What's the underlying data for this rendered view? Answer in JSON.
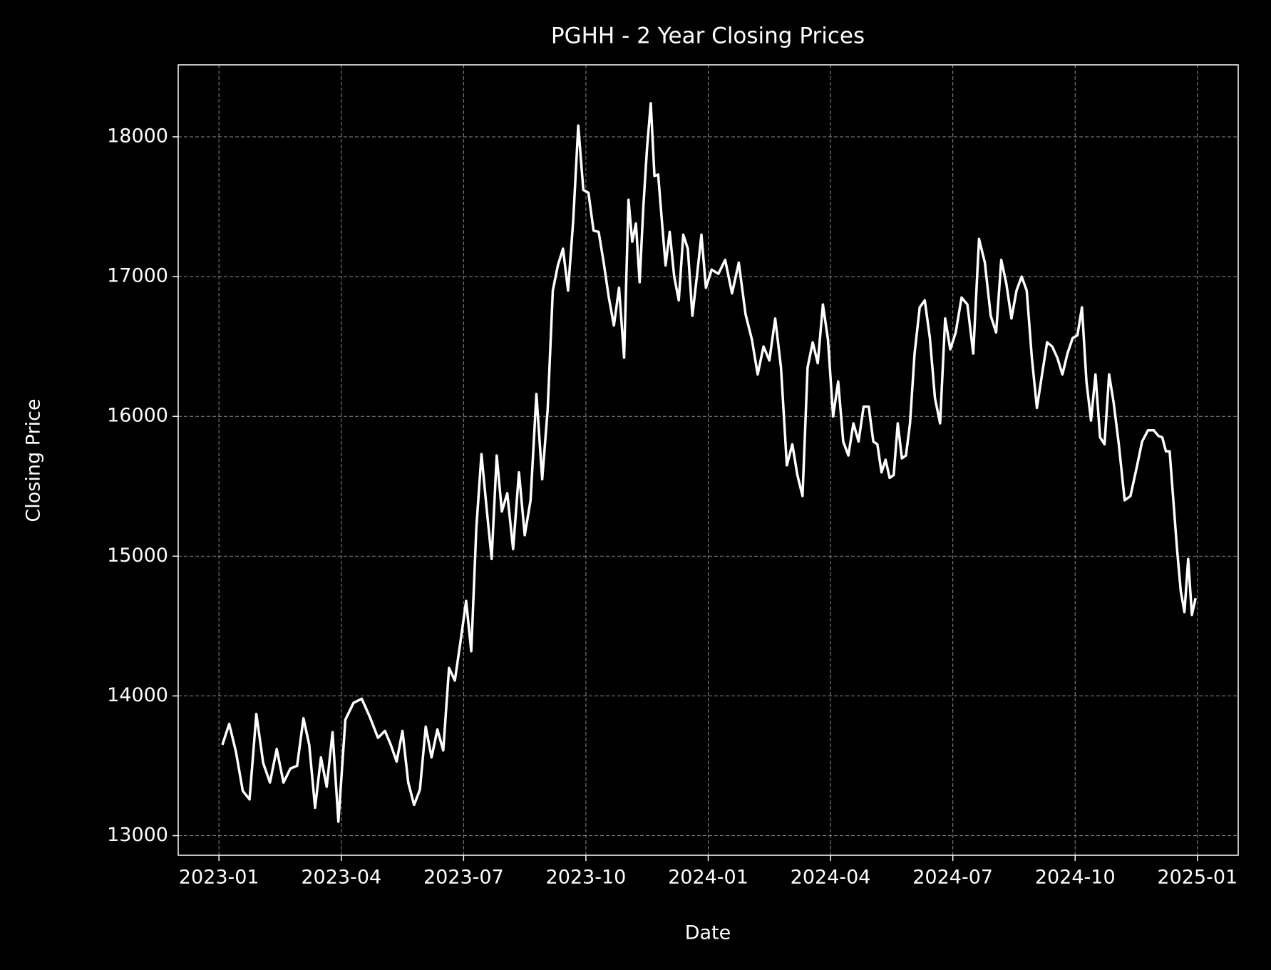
{
  "chart_data": {
    "type": "line",
    "title": "PGHH - 2 Year Closing Prices",
    "x_label": "Date",
    "y_label": "Closing Price",
    "x": [
      "2023-01",
      "2023-01",
      "2023-01",
      "2023-01",
      "2023-01",
      "2023-01",
      "2023-02",
      "2023-02",
      "2023-02",
      "2023-02",
      "2023-02",
      "2023-02",
      "2023-03",
      "2023-03",
      "2023-03",
      "2023-03",
      "2023-03",
      "2023-03",
      "2023-03",
      "2023-04",
      "2023-04",
      "2023-04",
      "2023-04",
      "2023-04",
      "2023-05",
      "2023-05",
      "2023-05",
      "2023-05",
      "2023-05",
      "2023-05",
      "2023-05",
      "2023-06",
      "2023-06",
      "2023-06",
      "2023-06",
      "2023-06",
      "2023-06",
      "2023-06",
      "2023-07",
      "2023-07",
      "2023-07",
      "2023-07",
      "2023-07",
      "2023-07",
      "2023-07",
      "2023-07",
      "2023-08",
      "2023-08",
      "2023-08",
      "2023-08",
      "2023-08",
      "2023-08",
      "2023-08",
      "2023-09",
      "2023-09",
      "2023-09",
      "2023-09",
      "2023-09",
      "2023-09",
      "2023-09",
      "2023-09",
      "2023-10",
      "2023-10",
      "2023-10",
      "2023-10",
      "2023-10",
      "2023-10",
      "2023-10",
      "2023-10",
      "2023-11",
      "2023-11",
      "2023-11",
      "2023-11",
      "2023-11",
      "2023-11",
      "2023-11",
      "2023-11",
      "2023-11",
      "2023-11",
      "2023-11",
      "2023-12",
      "2023-12",
      "2023-12",
      "2023-12",
      "2023-12",
      "2023-12",
      "2023-12",
      "2023-12",
      "2023-12",
      "2024-01",
      "2024-01",
      "2024-01",
      "2024-01",
      "2024-01",
      "2024-01",
      "2024-02",
      "2024-02",
      "2024-02",
      "2024-02",
      "2024-02",
      "2024-02",
      "2024-02",
      "2024-03",
      "2024-03",
      "2024-03",
      "2024-03",
      "2024-03",
      "2024-03",
      "2024-03",
      "2024-03",
      "2024-04",
      "2024-04",
      "2024-04",
      "2024-04",
      "2024-04",
      "2024-04",
      "2024-04",
      "2024-04",
      "2024-05",
      "2024-05",
      "2024-05",
      "2024-05",
      "2024-05",
      "2024-05",
      "2024-05",
      "2024-05",
      "2024-05",
      "2024-05",
      "2024-06",
      "2024-06",
      "2024-06",
      "2024-06",
      "2024-06",
      "2024-06",
      "2024-06",
      "2024-06",
      "2024-07",
      "2024-07",
      "2024-07",
      "2024-07",
      "2024-07",
      "2024-07",
      "2024-07",
      "2024-08",
      "2024-08",
      "2024-08",
      "2024-08",
      "2024-08",
      "2024-08",
      "2024-08",
      "2024-08",
      "2024-09",
      "2024-09",
      "2024-09",
      "2024-09",
      "2024-09",
      "2024-09",
      "2024-09",
      "2024-09",
      "2024-10",
      "2024-10",
      "2024-10",
      "2024-10",
      "2024-10",
      "2024-10",
      "2024-10",
      "2024-10",
      "2024-10",
      "2024-11",
      "2024-11",
      "2024-11",
      "2024-11",
      "2024-11",
      "2024-11",
      "2024-11",
      "2024-12",
      "2024-12",
      "2024-12",
      "2024-12",
      "2024-12",
      "2024-12",
      "2024-12",
      "2024-12",
      "2024-12",
      "2024-12",
      "2024-12"
    ],
    "values": [
      13650,
      13800,
      13600,
      13320,
      13260,
      13870,
      13520,
      13380,
      13620,
      13380,
      13480,
      13500,
      13840,
      13650,
      13200,
      13560,
      13350,
      13740,
      13100,
      13830,
      13950,
      13980,
      13850,
      13700,
      13750,
      13650,
      13530,
      13750,
      13380,
      13220,
      13330,
      13780,
      13560,
      13760,
      13610,
      14200,
      14110,
      14400,
      14680,
      14320,
      15200,
      15730,
      15350,
      14980,
      15720,
      15320,
      15450,
      15050,
      15600,
      15150,
      15400,
      16160,
      15550,
      16050,
      16900,
      17080,
      17200,
      16900,
      17400,
      18080,
      17620,
      17600,
      17330,
      17320,
      17100,
      16850,
      16650,
      16920,
      16420,
      17550,
      17250,
      17380,
      16960,
      17500,
      17920,
      18240,
      17720,
      17730,
      17400,
      17080,
      17320,
      17000,
      16830,
      17300,
      17200,
      16720,
      17000,
      17300,
      16920,
      17050,
      17020,
      17120,
      16880,
      17100,
      16730,
      16550,
      16300,
      16500,
      16400,
      16700,
      16350,
      15650,
      15800,
      15580,
      15430,
      16350,
      16530,
      16380,
      16800,
      16550,
      16000,
      16250,
      15820,
      15720,
      15950,
      15820,
      16070,
      16070,
      15820,
      15800,
      15600,
      15690,
      15560,
      15580,
      15950,
      15700,
      15720,
      15950,
      16450,
      16780,
      16830,
      16560,
      16130,
      15950,
      16700,
      16480,
      16600,
      16850,
      16800,
      16450,
      17270,
      17100,
      16720,
      16600,
      17120,
      16950,
      16700,
      16900,
      17000,
      16900,
      16420,
      16060,
      16300,
      16530,
      16500,
      16420,
      16300,
      16450,
      16560,
      16580,
      16780,
      16250,
      15970,
      16300,
      15850,
      15800,
      16300,
      16100,
      15800,
      15400,
      15430,
      15620,
      15820,
      15900,
      15900,
      15860,
      15850,
      15750,
      15750,
      15400,
      15050,
      14750,
      14600,
      14980,
      14580,
      14700
    ],
    "color": "#ffffff",
    "xlim": [
      "2022-12",
      "2025-02"
    ],
    "xticks": [
      "2023-01",
      "2023-04",
      "2023-07",
      "2023-10",
      "2024-01",
      "2024-04",
      "2024-07",
      "2024-10",
      "2025-01"
    ],
    "ylim": [
      12860,
      18515
    ],
    "yticks": [
      13000,
      14000,
      15000,
      16000,
      17000,
      18000
    ],
    "grid": true
  }
}
